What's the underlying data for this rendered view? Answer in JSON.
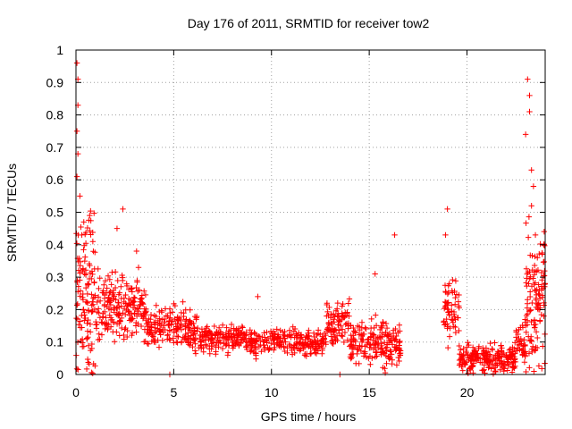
{
  "chart_data": {
    "type": "scatter",
    "title": "Day 176 of 2011, SRMTID for receiver tow2",
    "xlabel": "GPS time / hours",
    "ylabel": "SRMTID / TECUs",
    "xlim": [
      0,
      24
    ],
    "ylim": [
      0,
      1
    ],
    "xticks": [
      0,
      5,
      10,
      15,
      20
    ],
    "xtick_labels": [
      "0",
      "5",
      "10",
      "15",
      "20"
    ],
    "yticks": [
      0,
      0.1,
      0.2,
      0.3,
      0.4,
      0.5,
      0.6,
      0.7,
      0.8,
      0.9,
      1
    ],
    "ytick_labels": [
      "0",
      "0.1",
      "0.2",
      "0.3",
      "0.4",
      "0.5",
      "0.6",
      "0.7",
      "0.8",
      "0.9",
      "1"
    ],
    "grid": true,
    "marker": "+",
    "color": "#ff0000",
    "notable_points": [
      {
        "x": 0.05,
        "y": 0.96
      },
      {
        "x": 0.1,
        "y": 0.91
      },
      {
        "x": 0.1,
        "y": 0.83
      },
      {
        "x": 0.05,
        "y": 0.75
      },
      {
        "x": 0.1,
        "y": 0.68
      },
      {
        "x": 0.05,
        "y": 0.61
      },
      {
        "x": 0.2,
        "y": 0.55
      },
      {
        "x": 0.4,
        "y": 0.47
      },
      {
        "x": 0.3,
        "y": 0.43
      },
      {
        "x": 0.7,
        "y": 0.49
      },
      {
        "x": 2.1,
        "y": 0.45
      },
      {
        "x": 2.4,
        "y": 0.51
      },
      {
        "x": 3.1,
        "y": 0.38
      },
      {
        "x": 3.2,
        "y": 0.33
      },
      {
        "x": 4.8,
        "y": 0.0
      },
      {
        "x": 9.3,
        "y": 0.24
      },
      {
        "x": 13.5,
        "y": 0.0
      },
      {
        "x": 16.3,
        "y": 0.43
      },
      {
        "x": 15.3,
        "y": 0.31
      },
      {
        "x": 19.0,
        "y": 0.51
      },
      {
        "x": 18.9,
        "y": 0.43
      },
      {
        "x": 19.1,
        "y": 0.28
      },
      {
        "x": 23.1,
        "y": 0.91
      },
      {
        "x": 23.2,
        "y": 0.86
      },
      {
        "x": 23.2,
        "y": 0.81
      },
      {
        "x": 23.0,
        "y": 0.74
      },
      {
        "x": 23.3,
        "y": 0.63
      },
      {
        "x": 23.4,
        "y": 0.58
      },
      {
        "x": 23.3,
        "y": 0.52
      },
      {
        "x": 23.5,
        "y": 0.43
      },
      {
        "x": 23.6,
        "y": 0.36
      },
      {
        "x": 23.7,
        "y": 0.26
      }
    ],
    "segments": [
      {
        "x_start": 0.0,
        "x_end": 1.0,
        "y_center": 0.22,
        "y_spread": 0.35,
        "count": 120
      },
      {
        "x_start": 1.0,
        "x_end": 3.6,
        "y_center": 0.2,
        "y_spread": 0.14,
        "count": 210
      },
      {
        "x_start": 3.6,
        "x_end": 5.0,
        "y_center": 0.15,
        "y_spread": 0.08,
        "count": 90
      },
      {
        "x_start": 5.0,
        "x_end": 6.2,
        "y_center": 0.14,
        "y_spread": 0.1,
        "count": 90
      },
      {
        "x_start": 6.2,
        "x_end": 9.0,
        "y_center": 0.11,
        "y_spread": 0.06,
        "count": 180
      },
      {
        "x_start": 9.0,
        "x_end": 12.8,
        "y_center": 0.1,
        "y_spread": 0.06,
        "count": 220
      },
      {
        "x_start": 12.8,
        "x_end": 14.0,
        "y_center": 0.16,
        "y_spread": 0.09,
        "count": 90
      },
      {
        "x_start": 14.0,
        "x_end": 15.5,
        "y_center": 0.1,
        "y_spread": 0.1,
        "count": 100
      },
      {
        "x_start": 15.5,
        "x_end": 16.6,
        "y_center": 0.09,
        "y_spread": 0.12,
        "count": 90
      },
      {
        "x_start": 18.8,
        "x_end": 19.6,
        "y_center": 0.2,
        "y_spread": 0.14,
        "count": 60
      },
      {
        "x_start": 19.6,
        "x_end": 22.5,
        "y_center": 0.05,
        "y_spread": 0.06,
        "count": 220
      },
      {
        "x_start": 22.5,
        "x_end": 23.0,
        "y_center": 0.1,
        "y_spread": 0.09,
        "count": 40
      },
      {
        "x_start": 23.0,
        "x_end": 24.0,
        "y_center": 0.25,
        "y_spread": 0.3,
        "count": 120
      }
    ]
  }
}
